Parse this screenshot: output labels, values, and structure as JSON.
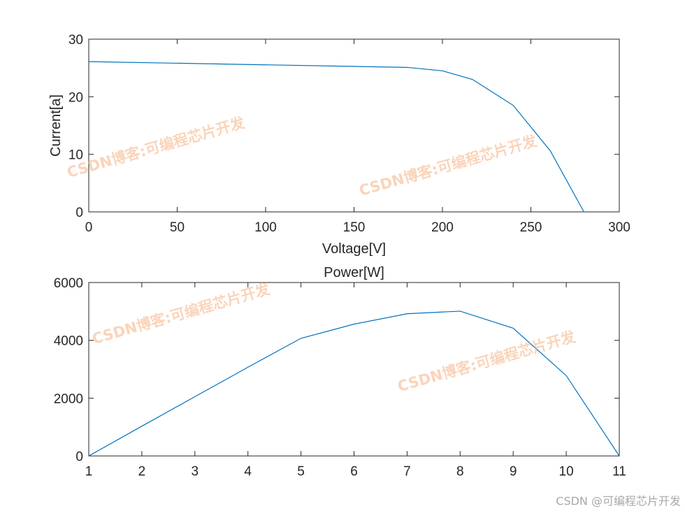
{
  "chart_data": [
    {
      "type": "line",
      "title": "",
      "xlabel": "Voltage[V]",
      "ylabel": "Current[a]",
      "xlim": [
        0,
        300
      ],
      "ylim": [
        0,
        30
      ],
      "xticks": [
        0,
        50,
        100,
        150,
        200,
        250,
        300
      ],
      "yticks": [
        0,
        10,
        20,
        30
      ],
      "grid": false,
      "series": [
        {
          "x": [
            0,
            180,
            200,
            217,
            240,
            261,
            280
          ],
          "y": [
            26.1,
            25.1,
            24.5,
            23.0,
            18.5,
            10.6,
            0
          ]
        }
      ]
    },
    {
      "type": "line",
      "title": "Power[W]",
      "xlabel": "",
      "ylabel": "",
      "xlim": [
        1,
        11
      ],
      "ylim": [
        0,
        6000
      ],
      "xticks": [
        1,
        2,
        3,
        4,
        5,
        6,
        7,
        8,
        9,
        10,
        11
      ],
      "yticks": [
        0,
        2000,
        4000,
        6000
      ],
      "grid": false,
      "series": [
        {
          "x": [
            1,
            2,
            3,
            4,
            5,
            6,
            7,
            8,
            9,
            10,
            11
          ],
          "y": [
            0,
            1030,
            2050,
            3070,
            4070,
            4560,
            4920,
            5010,
            4420,
            2780,
            0
          ]
        }
      ]
    }
  ],
  "colors": {
    "line": "#0072bd",
    "axis": "#262626",
    "watermark": "#f5b082"
  },
  "watermark": {
    "overlay_text": "CSDN博客:可编程芯片开发",
    "corner_text": "CSDN @可编程芯片开发"
  }
}
